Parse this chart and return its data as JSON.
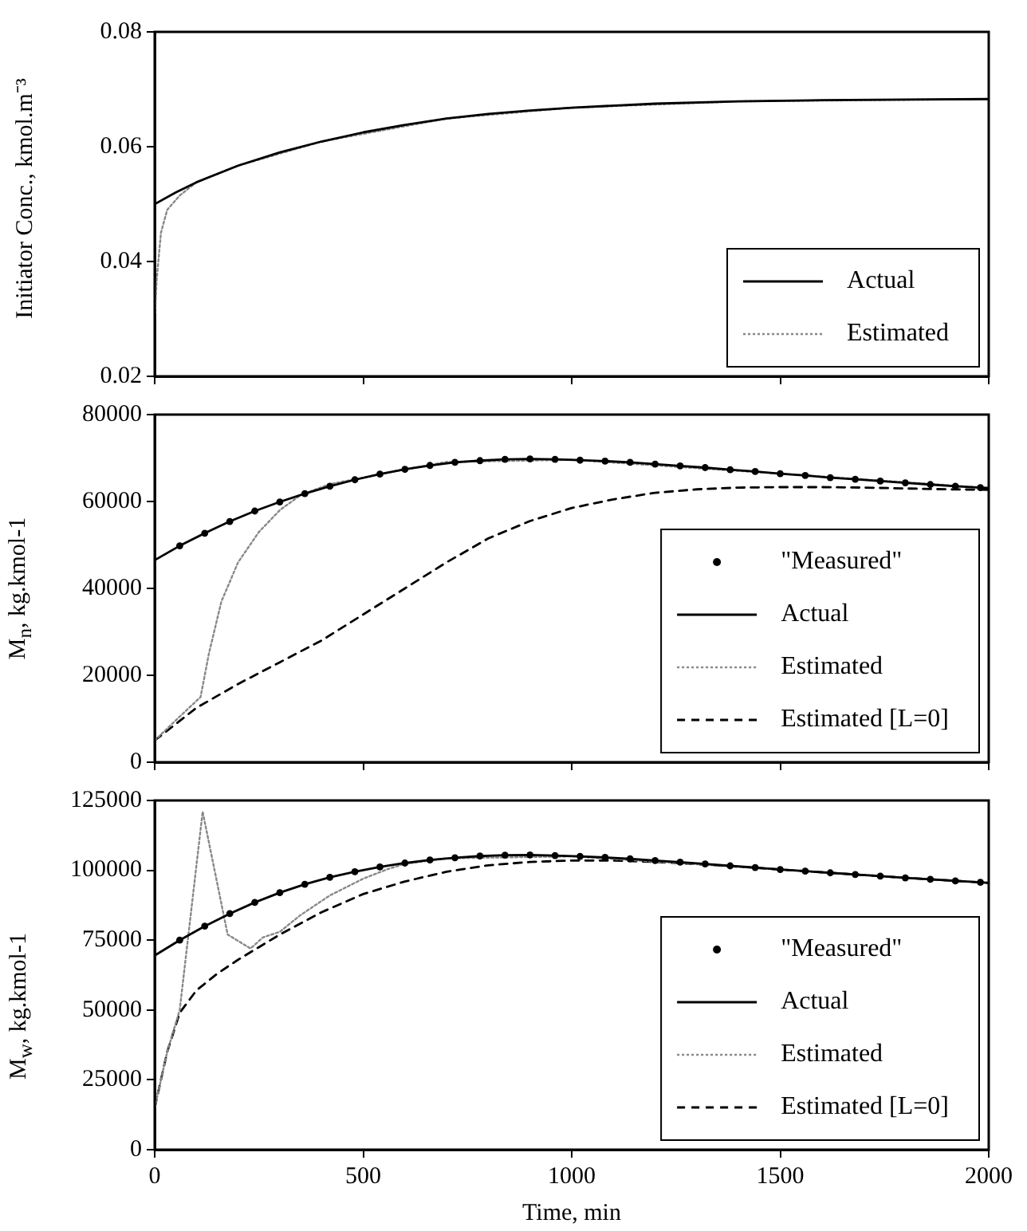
{
  "chart_data": [
    {
      "type": "line",
      "ylabel": "Initiator Conc., kmol.m⁻³",
      "xlim": [
        0,
        2000
      ],
      "xticks": [
        0,
        500,
        1000,
        1500,
        2000
      ],
      "ylim": [
        0.02,
        0.08
      ],
      "yticks": [
        0.02,
        0.04,
        0.06,
        0.08
      ],
      "tick_labels": "y",
      "legend": "bottom right",
      "series": [
        {
          "name": "Actual",
          "color": "#000000",
          "line_style": "solid",
          "x": [
            0,
            50,
            100,
            200,
            300,
            400,
            500,
            600,
            700,
            800,
            900,
            1000,
            1200,
            1400,
            1600,
            1800,
            2000
          ],
          "values": [
            0.05,
            0.052,
            0.0538,
            0.0567,
            0.059,
            0.0609,
            0.0625,
            0.0638,
            0.0649,
            0.0657,
            0.0663,
            0.0668,
            0.0675,
            0.0679,
            0.0681,
            0.0682,
            0.0683
          ]
        },
        {
          "name": "Estimated",
          "color": "#888888",
          "line_style": "dotted",
          "x": [
            0,
            5,
            15,
            30,
            60,
            100,
            200,
            400,
            700,
            1000,
            1400,
            2000
          ],
          "values": [
            0.03,
            0.037,
            0.045,
            0.049,
            0.0515,
            0.0538,
            0.0567,
            0.0609,
            0.0649,
            0.0668,
            0.0679,
            0.0683
          ]
        }
      ]
    },
    {
      "type": "line",
      "ylabel": "M$_{n}$, kg.kmol-1",
      "xlim": [
        0,
        2000
      ],
      "xticks": [
        0,
        500,
        1000,
        1500,
        2000
      ],
      "ylim": [
        0,
        80000
      ],
      "yticks": [
        0,
        20000,
        40000,
        60000,
        80000
      ],
      "tick_labels": "y",
      "legend": "bottom right",
      "series": [
        {
          "name": "\"Measured\"",
          "type": "scatter",
          "marker": "circle",
          "color": "#000000",
          "x": [
            60,
            120,
            180,
            240,
            300,
            360,
            420,
            480,
            540,
            600,
            660,
            720,
            780,
            840,
            900,
            960,
            1020,
            1080,
            1140,
            1200,
            1260,
            1320,
            1380,
            1440,
            1500,
            1560,
            1620,
            1680,
            1740,
            1800,
            1860,
            1920,
            1980
          ],
          "values": [
            49800,
            52700,
            55400,
            57800,
            59900,
            61800,
            63500,
            65000,
            66300,
            67400,
            68300,
            69000,
            69400,
            69700,
            69800,
            69700,
            69500,
            69300,
            69000,
            68600,
            68200,
            67800,
            67300,
            66900,
            66400,
            66000,
            65500,
            65100,
            64700,
            64300,
            63900,
            63500,
            63200
          ]
        },
        {
          "name": "Actual",
          "color": "#000000",
          "line_style": "solid",
          "x": [
            0,
            60,
            120,
            180,
            240,
            300,
            360,
            420,
            480,
            540,
            600,
            660,
            720,
            780,
            840,
            900,
            960,
            1020,
            1080,
            1140,
            1200,
            1260,
            1320,
            1380,
            1440,
            1500,
            1560,
            1620,
            1680,
            1740,
            1800,
            1860,
            1920,
            1980,
            2000
          ],
          "values": [
            46500,
            49800,
            52700,
            55400,
            57800,
            59900,
            61800,
            63500,
            65000,
            66300,
            67400,
            68300,
            69000,
            69400,
            69700,
            69800,
            69700,
            69500,
            69300,
            69000,
            68600,
            68200,
            67800,
            67300,
            66900,
            66400,
            66000,
            65500,
            65100,
            64700,
            64300,
            63900,
            63500,
            63200,
            63100
          ]
        },
        {
          "name": "Estimated",
          "color": "#888888",
          "line_style": "dotted",
          "x": [
            0,
            60,
            110,
            130,
            160,
            200,
            250,
            300,
            350,
            420,
            500,
            600,
            700,
            1000,
            1500,
            2000
          ],
          "values": [
            5000,
            10500,
            15000,
            25000,
            37000,
            46000,
            53000,
            58000,
            61500,
            64000,
            65500,
            67400,
            69100,
            69600,
            66400,
            63100
          ]
        },
        {
          "name": "Estimated [L=0]",
          "color": "#000000",
          "line_style": "dashed",
          "x": [
            0,
            100,
            200,
            300,
            400,
            500,
            600,
            700,
            800,
            900,
            1000,
            1100,
            1200,
            1300,
            1400,
            1500,
            1600,
            1700,
            1800,
            1900,
            2000
          ],
          "values": [
            5000,
            12500,
            18000,
            23000,
            28000,
            34000,
            40000,
            46000,
            51500,
            55500,
            58500,
            60500,
            62000,
            62800,
            63200,
            63300,
            63300,
            63200,
            63000,
            62800,
            62700
          ]
        }
      ]
    },
    {
      "type": "line",
      "xlabel": "Time, min",
      "ylabel": "M$_{w}$, kg.kmol-1",
      "xlim": [
        0,
        2000
      ],
      "xticks": [
        0,
        500,
        1000,
        1500,
        2000
      ],
      "ylim": [
        0,
        125000
      ],
      "yticks": [
        0,
        25000,
        50000,
        75000,
        100000,
        125000
      ],
      "legend": "bottom right",
      "series": [
        {
          "name": "\"Measured\"",
          "type": "scatter",
          "marker": "circle",
          "color": "#000000",
          "x": [
            60,
            120,
            180,
            240,
            300,
            360,
            420,
            480,
            540,
            600,
            660,
            720,
            780,
            840,
            900,
            960,
            1020,
            1080,
            1140,
            1200,
            1260,
            1320,
            1380,
            1440,
            1500,
            1560,
            1620,
            1680,
            1740,
            1800,
            1860,
            1920,
            1980
          ],
          "values": [
            75000,
            80000,
            84500,
            88500,
            92000,
            95000,
            97500,
            99500,
            101200,
            102600,
            103700,
            104500,
            105100,
            105400,
            105500,
            105300,
            105000,
            104600,
            104100,
            103500,
            102900,
            102300,
            101600,
            101000,
            100300,
            99700,
            99100,
            98500,
            97900,
            97300,
            96800,
            96200,
            95700
          ]
        },
        {
          "name": "Actual",
          "color": "#000000",
          "line_style": "solid",
          "x": [
            0,
            60,
            120,
            180,
            240,
            300,
            360,
            420,
            480,
            540,
            600,
            660,
            720,
            780,
            840,
            900,
            960,
            1020,
            1080,
            1140,
            1200,
            1260,
            1320,
            1380,
            1440,
            1500,
            1560,
            1620,
            1680,
            1740,
            1800,
            1860,
            1920,
            1980,
            2000
          ],
          "values": [
            69500,
            75000,
            80000,
            84500,
            88500,
            92000,
            95000,
            97500,
            99500,
            101200,
            102600,
            103700,
            104500,
            105100,
            105400,
            105500,
            105300,
            105000,
            104600,
            104100,
            103500,
            102900,
            102300,
            101600,
            101000,
            100300,
            99700,
            99100,
            98500,
            97900,
            97300,
            96800,
            96200,
            95700,
            95500
          ]
        },
        {
          "name": "Estimated",
          "color": "#888888",
          "line_style": "dotted",
          "x": [
            0,
            30,
            60,
            115,
            175,
            230,
            260,
            300,
            350,
            420,
            500,
            560,
            600,
            700,
            1000,
            1500,
            2000
          ],
          "values": [
            15000,
            35000,
            50000,
            121000,
            77000,
            72000,
            76000,
            78000,
            84000,
            91000,
            97000,
            100500,
            102300,
            104300,
            105000,
            100300,
            95500
          ]
        },
        {
          "name": "Estimated [L=0]",
          "color": "#000000",
          "line_style": "dashed",
          "x": [
            0,
            30,
            60,
            100,
            150,
            200,
            250,
            300,
            400,
            500,
            600,
            700,
            800,
            900,
            1000,
            1100,
            1200,
            1300,
            1400,
            1500,
            1750,
            2000
          ],
          "values": [
            15000,
            35000,
            49000,
            57000,
            63000,
            68000,
            72500,
            77000,
            85000,
            91500,
            96000,
            99500,
            101800,
            103000,
            103500,
            103500,
            103000,
            102200,
            101300,
            100300,
            97800,
            95500
          ]
        }
      ]
    }
  ]
}
